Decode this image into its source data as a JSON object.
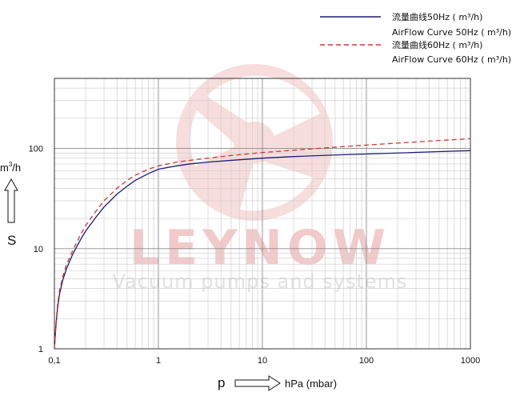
{
  "chart_data": {
    "type": "line",
    "title": "",
    "x_scale": "log",
    "y_scale": "log",
    "xlim": [
      0.1,
      1000
    ],
    "ylim": [
      1,
      500
    ],
    "x_tick_labels": [
      {
        "value": 0.1,
        "label": "0,1"
      },
      {
        "value": 1,
        "label": "1"
      },
      {
        "value": 10,
        "label": "10"
      },
      {
        "value": 100,
        "label": "100"
      },
      {
        "value": 1000,
        "label": "1000"
      }
    ],
    "y_tick_labels": [
      {
        "value": 1,
        "label": "1"
      },
      {
        "value": 10,
        "label": "10"
      },
      {
        "value": 100,
        "label": "100"
      }
    ],
    "xlabel": {
      "symbol": "p",
      "unit": "hPa (mbar)"
    },
    "ylabel": {
      "symbol": "S",
      "unit_base": "m",
      "unit_exp": "3",
      "unit_tail": "/h"
    },
    "grid": true,
    "legend_placement": "top-right",
    "series": [
      {
        "name": "流量曲线50Hz ( m³/h)",
        "name_line2": "AirFlow Curve 50Hz ( m³/h)",
        "color": "#1c1c7a",
        "style": "solid",
        "x": [
          0.1,
          0.103,
          0.107,
          0.112,
          0.12,
          0.13,
          0.15,
          0.18,
          0.2,
          0.25,
          0.3,
          0.4,
          0.5,
          0.6,
          0.8,
          1,
          1.5,
          2,
          3,
          5,
          10,
          20,
          50,
          100,
          200,
          500,
          1000
        ],
        "y": [
          1,
          1.6,
          2.5,
          3.5,
          4.8,
          6.2,
          8.8,
          12.5,
          15,
          20.5,
          26,
          35,
          42,
          48,
          56,
          62,
          67,
          70,
          73,
          76,
          80,
          83,
          86,
          88,
          90,
          93,
          95
        ]
      },
      {
        "name": "流量曲线60Hz ( m³/h)",
        "name_line2": "AirFlow Curve 60Hz ( m³/h)",
        "color": "#d9342b",
        "style": "dashed",
        "x": [
          0.1,
          0.103,
          0.107,
          0.112,
          0.12,
          0.13,
          0.15,
          0.18,
          0.2,
          0.25,
          0.3,
          0.4,
          0.5,
          0.6,
          0.8,
          1,
          1.5,
          2,
          3,
          5,
          10,
          20,
          50,
          100,
          200,
          500,
          1000
        ],
        "y": [
          1,
          1.7,
          2.7,
          3.8,
          5.2,
          6.8,
          9.6,
          14,
          17,
          23.5,
          30,
          40,
          48,
          54,
          62,
          67,
          73,
          76,
          80,
          85,
          91,
          96,
          103,
          108,
          113,
          120,
          125
        ]
      }
    ]
  },
  "watermark": {
    "brand": "LEYNOW",
    "tagline": "Vacuum pumps and systems",
    "color": "#e9a4a4"
  }
}
